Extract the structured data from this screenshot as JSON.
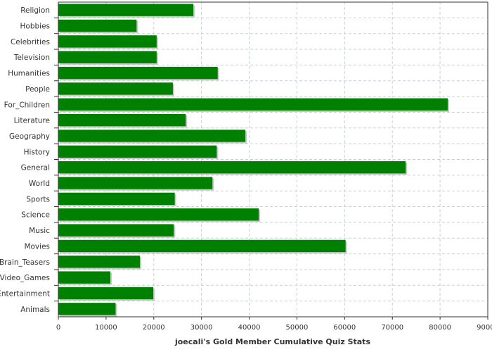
{
  "chart_data": {
    "type": "bar",
    "orientation": "horizontal",
    "categories": [
      "Religion",
      "Hobbies",
      "Celebrities",
      "Television",
      "Humanities",
      "People",
      "For_Children",
      "Literature",
      "Geography",
      "History",
      "General",
      "World",
      "Sports",
      "Science",
      "Music",
      "Movies",
      "Brain_Teasers",
      "Video_Games",
      "Entertainment",
      "Animals"
    ],
    "values": [
      28300,
      16400,
      20600,
      20600,
      33400,
      24000,
      81600,
      26700,
      39200,
      33200,
      72800,
      32300,
      24400,
      42000,
      24200,
      60200,
      17100,
      10900,
      19900,
      12000
    ],
    "title": "",
    "xlabel": "joecali's  Gold  Member  Cumulative  Quiz  Stats",
    "ylabel": "",
    "xlim": [
      0,
      90000
    ],
    "xticks": [
      "0",
      "10000",
      "20000",
      "30000",
      "40000",
      "50000",
      "60000",
      "70000",
      "80000",
      "90000"
    ],
    "grid": true,
    "bar_color": "#008000",
    "shadow_color": "#c8c8c8",
    "grid_color": "#c8d0d8"
  }
}
